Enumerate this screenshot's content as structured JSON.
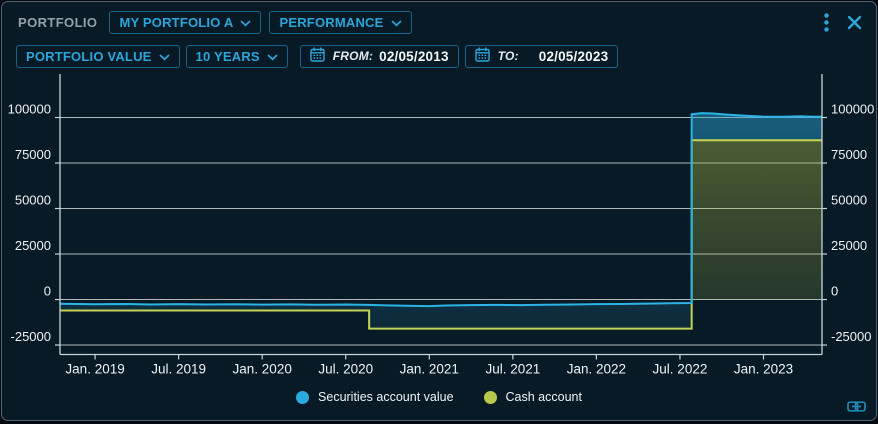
{
  "header": {
    "portfolio_label": "PORTFOLIO",
    "portfolio_select": "MY PORTFOLIO A",
    "view_select": "PERFORMANCE"
  },
  "toolbar": {
    "metric_select": "PORTFOLIO VALUE",
    "range_select": "10 YEARS",
    "from_label": "FROM:",
    "from_value": "02/05/2013",
    "to_label": "TO:",
    "to_value": "02/05/2023"
  },
  "legend": [
    {
      "label": "Securities account value",
      "color": "#29abdf"
    },
    {
      "label": "Cash account",
      "color": "#b6c94b"
    }
  ],
  "colors": {
    "background": "#081a25",
    "accent_cyan": "#2aa6da",
    "securities_line": "#2db4e6",
    "cash_line": "#c4d355",
    "gridline": "#e7edf0",
    "axis": "#c8d3d9",
    "text_white": "#f1f6f8"
  },
  "chart_data": {
    "type": "area",
    "title": "",
    "xlabel": "",
    "ylabel": "",
    "grid": "horizontal",
    "legend_position": "bottom",
    "x_range": [
      2018.79,
      2023.35
    ],
    "ylim": [
      -30200,
      123900
    ],
    "y_ticks": [
      -25000,
      0,
      25000,
      50000,
      75000,
      100000
    ],
    "x_ticks": [
      {
        "x": 2019.0,
        "label": "Jan. 2019"
      },
      {
        "x": 2019.5,
        "label": "Jul. 2019"
      },
      {
        "x": 2020.0,
        "label": "Jan. 2020"
      },
      {
        "x": 2020.5,
        "label": "Jul. 2020"
      },
      {
        "x": 2021.0,
        "label": "Jan. 2021"
      },
      {
        "x": 2021.5,
        "label": "Jul. 2021"
      },
      {
        "x": 2022.0,
        "label": "Jan. 2022"
      },
      {
        "x": 2022.5,
        "label": "Jul. 2022"
      },
      {
        "x": 2023.0,
        "label": "Jan. 2023"
      }
    ],
    "series": [
      {
        "name": "Securities account value",
        "color": "#2db4e6",
        "points": [
          [
            2018.79,
            -2300
          ],
          [
            2019.0,
            -2600
          ],
          [
            2019.17,
            -2450
          ],
          [
            2019.33,
            -2700
          ],
          [
            2019.5,
            -2550
          ],
          [
            2019.67,
            -2750
          ],
          [
            2019.83,
            -2600
          ],
          [
            2020.0,
            -2800
          ],
          [
            2020.17,
            -2650
          ],
          [
            2020.33,
            -2900
          ],
          [
            2020.5,
            -2750
          ],
          [
            2020.63,
            -2950
          ],
          [
            2020.75,
            -3200
          ],
          [
            2020.9,
            -3500
          ],
          [
            2021.0,
            -3600
          ],
          [
            2021.1,
            -3300
          ],
          [
            2021.25,
            -3100
          ],
          [
            2021.4,
            -2950
          ],
          [
            2021.55,
            -3050
          ],
          [
            2021.7,
            -2850
          ],
          [
            2021.85,
            -2750
          ],
          [
            2022.0,
            -2550
          ],
          [
            2022.15,
            -2450
          ],
          [
            2022.3,
            -2250
          ],
          [
            2022.45,
            -2050
          ],
          [
            2022.57,
            -1900
          ],
          [
            2022.57,
            101800
          ],
          [
            2022.63,
            102400
          ],
          [
            2022.7,
            102200
          ],
          [
            2022.78,
            101600
          ],
          [
            2022.88,
            101000
          ],
          [
            2023.0,
            100500
          ],
          [
            2023.12,
            100400
          ],
          [
            2023.22,
            100700
          ],
          [
            2023.3,
            100400
          ],
          [
            2023.35,
            100500
          ]
        ]
      },
      {
        "name": "Cash account",
        "color": "#c4d355",
        "points": [
          [
            2018.79,
            -6000
          ],
          [
            2020.64,
            -6000
          ],
          [
            2020.64,
            -16000
          ],
          [
            2022.57,
            -16000
          ],
          [
            2022.57,
            87500
          ],
          [
            2023.35,
            87500
          ]
        ]
      }
    ]
  }
}
